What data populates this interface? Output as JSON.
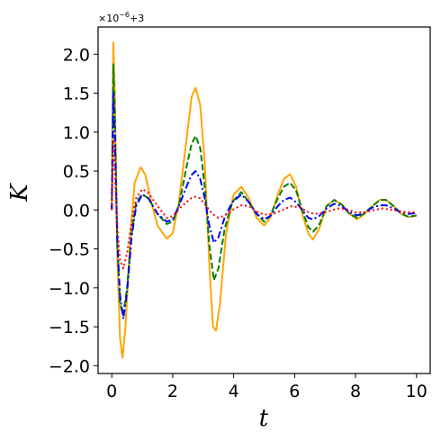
{
  "chart_data": {
    "type": "line",
    "title": "",
    "xlabel": "t",
    "ylabel": "K",
    "xlim": [
      -0.45,
      10.45
    ],
    "ylim": [
      -2.1,
      2.35
    ],
    "x_ticks": [
      0,
      2,
      4,
      6,
      8,
      10
    ],
    "y_ticks": [
      -2.0,
      -1.5,
      -1.0,
      -0.5,
      0.0,
      0.5,
      1.0,
      1.5,
      2.0
    ],
    "x_tick_labels": [
      "0",
      "2",
      "4",
      "6",
      "8",
      "10"
    ],
    "y_tick_labels": [
      "−2.0",
      "−1.5",
      "−1.0",
      "−0.5",
      "0.0",
      "0.5",
      "1.0",
      "1.5",
      "2.0"
    ],
    "offset_text": "×10⁻⁶+3",
    "offset_base": "×10",
    "offset_exp": "−6",
    "offset_add": "+3",
    "grid": false,
    "legend": "none",
    "series": [
      {
        "color": "#ffa500",
        "style": "solid",
        "points": [
          [
            0,
            0
          ],
          [
            0.05,
            2.15
          ],
          [
            0.1,
            1.5
          ],
          [
            0.18,
            -0.6
          ],
          [
            0.27,
            -1.65
          ],
          [
            0.35,
            -1.9
          ],
          [
            0.45,
            -1.5
          ],
          [
            0.6,
            -0.4
          ],
          [
            0.75,
            0.35
          ],
          [
            0.95,
            0.55
          ],
          [
            1.1,
            0.45
          ],
          [
            1.3,
            0.1
          ],
          [
            1.5,
            -0.2
          ],
          [
            1.8,
            -0.37
          ],
          [
            2.0,
            -0.3
          ],
          [
            2.2,
            0.1
          ],
          [
            2.45,
            0.9
          ],
          [
            2.62,
            1.45
          ],
          [
            2.75,
            1.57
          ],
          [
            2.9,
            1.35
          ],
          [
            3.05,
            0.6
          ],
          [
            3.2,
            -0.7
          ],
          [
            3.32,
            -1.5
          ],
          [
            3.42,
            -1.55
          ],
          [
            3.55,
            -1.2
          ],
          [
            3.75,
            -0.3
          ],
          [
            4.0,
            0.2
          ],
          [
            4.25,
            0.3
          ],
          [
            4.5,
            0.15
          ],
          [
            4.75,
            -0.1
          ],
          [
            5.0,
            -0.2
          ],
          [
            5.2,
            -0.1
          ],
          [
            5.45,
            0.2
          ],
          [
            5.65,
            0.4
          ],
          [
            5.85,
            0.46
          ],
          [
            6.05,
            0.3
          ],
          [
            6.25,
            -0.05
          ],
          [
            6.45,
            -0.3
          ],
          [
            6.6,
            -0.38
          ],
          [
            6.8,
            -0.25
          ],
          [
            7.05,
            0.05
          ],
          [
            7.3,
            0.13
          ],
          [
            7.55,
            0.07
          ],
          [
            7.8,
            -0.05
          ],
          [
            8.05,
            -0.12
          ],
          [
            8.3,
            -0.05
          ],
          [
            8.55,
            0.05
          ],
          [
            8.8,
            0.13
          ],
          [
            9.0,
            0.13
          ],
          [
            9.25,
            0.05
          ],
          [
            9.5,
            -0.05
          ],
          [
            9.75,
            -0.09
          ],
          [
            10,
            -0.07
          ]
        ]
      },
      {
        "color": "#008000",
        "style": "dashed",
        "points": [
          [
            0,
            0
          ],
          [
            0.05,
            1.87
          ],
          [
            0.1,
            1.25
          ],
          [
            0.18,
            -0.4
          ],
          [
            0.27,
            -1.2
          ],
          [
            0.37,
            -1.35
          ],
          [
            0.5,
            -1.0
          ],
          [
            0.65,
            -0.3
          ],
          [
            0.8,
            0.1
          ],
          [
            1.0,
            0.2
          ],
          [
            1.2,
            0.15
          ],
          [
            1.5,
            -0.05
          ],
          [
            1.8,
            -0.18
          ],
          [
            2.0,
            -0.15
          ],
          [
            2.2,
            0.05
          ],
          [
            2.45,
            0.55
          ],
          [
            2.62,
            0.85
          ],
          [
            2.75,
            0.95
          ],
          [
            2.9,
            0.8
          ],
          [
            3.05,
            0.3
          ],
          [
            3.2,
            -0.45
          ],
          [
            3.35,
            -0.9
          ],
          [
            3.5,
            -0.75
          ],
          [
            3.7,
            -0.25
          ],
          [
            3.95,
            0.1
          ],
          [
            4.25,
            0.23
          ],
          [
            4.5,
            0.1
          ],
          [
            4.75,
            -0.05
          ],
          [
            5.0,
            -0.15
          ],
          [
            5.2,
            -0.07
          ],
          [
            5.45,
            0.15
          ],
          [
            5.65,
            0.3
          ],
          [
            5.85,
            0.35
          ],
          [
            6.05,
            0.25
          ],
          [
            6.25,
            0.0
          ],
          [
            6.45,
            -0.22
          ],
          [
            6.6,
            -0.28
          ],
          [
            6.8,
            -0.2
          ],
          [
            7.05,
            0.05
          ],
          [
            7.3,
            0.13
          ],
          [
            7.55,
            0.07
          ],
          [
            7.8,
            -0.05
          ],
          [
            8.05,
            -0.1
          ],
          [
            8.3,
            -0.04
          ],
          [
            8.55,
            0.05
          ],
          [
            8.8,
            0.13
          ],
          [
            9.0,
            0.13
          ],
          [
            9.25,
            0.05
          ],
          [
            9.5,
            -0.05
          ],
          [
            9.75,
            -0.09
          ],
          [
            10,
            -0.07
          ]
        ]
      },
      {
        "color": "#0000ff",
        "style": "dashdot",
        "points": [
          [
            0,
            0
          ],
          [
            0.05,
            1.5
          ],
          [
            0.1,
            0.9
          ],
          [
            0.18,
            -0.4
          ],
          [
            0.27,
            -1.1
          ],
          [
            0.38,
            -1.4
          ],
          [
            0.5,
            -1.05
          ],
          [
            0.65,
            -0.35
          ],
          [
            0.8,
            0.05
          ],
          [
            1.0,
            0.2
          ],
          [
            1.2,
            0.15
          ],
          [
            1.5,
            -0.05
          ],
          [
            1.8,
            -0.15
          ],
          [
            2.0,
            -0.12
          ],
          [
            2.2,
            0.05
          ],
          [
            2.45,
            0.3
          ],
          [
            2.62,
            0.45
          ],
          [
            2.75,
            0.5
          ],
          [
            2.9,
            0.4
          ],
          [
            3.05,
            0.15
          ],
          [
            3.2,
            -0.2
          ],
          [
            3.35,
            -0.42
          ],
          [
            3.5,
            -0.35
          ],
          [
            3.7,
            -0.1
          ],
          [
            3.95,
            0.1
          ],
          [
            4.25,
            0.2
          ],
          [
            4.5,
            0.1
          ],
          [
            4.75,
            -0.05
          ],
          [
            5.0,
            -0.12
          ],
          [
            5.2,
            -0.08
          ],
          [
            5.45,
            0.05
          ],
          [
            5.65,
            0.13
          ],
          [
            5.85,
            0.16
          ],
          [
            6.05,
            0.1
          ],
          [
            6.25,
            0.0
          ],
          [
            6.45,
            -0.1
          ],
          [
            6.6,
            -0.12
          ],
          [
            6.8,
            -0.08
          ],
          [
            7.05,
            0.02
          ],
          [
            7.3,
            0.08
          ],
          [
            7.55,
            0.05
          ],
          [
            7.8,
            -0.03
          ],
          [
            8.05,
            -0.07
          ],
          [
            8.3,
            -0.03
          ],
          [
            8.55,
            0.03
          ],
          [
            8.8,
            0.06
          ],
          [
            9.0,
            0.06
          ],
          [
            9.25,
            0.02
          ],
          [
            9.5,
            -0.03
          ],
          [
            9.75,
            -0.05
          ],
          [
            10,
            -0.04
          ]
        ]
      },
      {
        "color": "#ff0000",
        "style": "dotted",
        "points": [
          [
            0,
            0
          ],
          [
            0.05,
            0.9
          ],
          [
            0.1,
            0.5
          ],
          [
            0.18,
            -0.2
          ],
          [
            0.27,
            -0.65
          ],
          [
            0.38,
            -0.75
          ],
          [
            0.5,
            -0.55
          ],
          [
            0.65,
            -0.15
          ],
          [
            0.8,
            0.15
          ],
          [
            1.0,
            0.27
          ],
          [
            1.2,
            0.22
          ],
          [
            1.5,
            0.05
          ],
          [
            1.8,
            -0.1
          ],
          [
            2.0,
            -0.08
          ],
          [
            2.3,
            0.05
          ],
          [
            2.6,
            0.15
          ],
          [
            2.75,
            0.17
          ],
          [
            2.9,
            0.15
          ],
          [
            3.1,
            0.05
          ],
          [
            3.3,
            -0.05
          ],
          [
            3.5,
            -0.1
          ],
          [
            3.7,
            -0.07
          ],
          [
            3.95,
            0.0
          ],
          [
            4.25,
            0.06
          ],
          [
            4.5,
            0.05
          ],
          [
            4.75,
            -0.02
          ],
          [
            5.0,
            -0.06
          ],
          [
            5.3,
            -0.05
          ],
          [
            5.6,
            0.0
          ],
          [
            5.9,
            0.05
          ],
          [
            6.2,
            0.03
          ],
          [
            6.5,
            -0.04
          ],
          [
            6.8,
            -0.05
          ],
          [
            7.1,
            -0.02
          ],
          [
            7.4,
            0.02
          ],
          [
            7.7,
            0.01
          ],
          [
            8.0,
            -0.03
          ],
          [
            8.3,
            -0.03
          ],
          [
            8.6,
            0.0
          ],
          [
            8.9,
            0.02
          ],
          [
            9.2,
            0.0
          ],
          [
            9.5,
            -0.02
          ],
          [
            9.75,
            -0.03
          ],
          [
            10,
            -0.03
          ]
        ]
      }
    ]
  }
}
